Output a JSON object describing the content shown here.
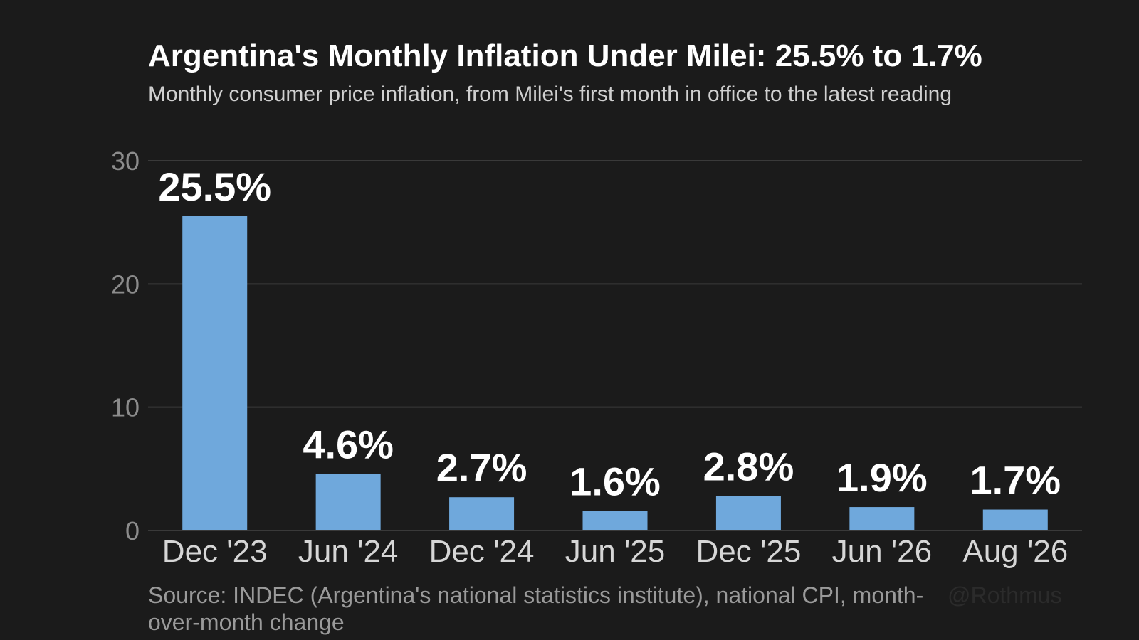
{
  "colors": {
    "background": "#1b1b1b",
    "bar": "#6fa8dc",
    "grid": "#3a3a3a",
    "text": "#ffffff",
    "axis_text": "#8c8c8c",
    "category_text": "#d6d6d6"
  },
  "chart_data": {
    "type": "bar",
    "title": "Argentina's Monthly Inflation Under Milei: 25.5% to 1.7%",
    "subtitle": "Monthly consumer price inflation, from Milei's first month in office to the latest reading",
    "categories": [
      "Dec '23",
      "Jun '24",
      "Dec '24",
      "Jun '25",
      "Dec '25",
      "Jun '26",
      "Aug '26"
    ],
    "values": [
      25.5,
      4.6,
      2.7,
      1.6,
      2.8,
      1.9,
      1.7
    ],
    "data_labels": [
      "25.5%",
      "4.6%",
      "2.7%",
      "1.6%",
      "2.8%",
      "1.9%",
      "1.7%"
    ],
    "yticks": [
      0,
      10,
      20,
      30
    ],
    "ytick_labels": [
      "0",
      "10",
      "20",
      "30"
    ],
    "ylim": [
      0,
      30
    ],
    "grid": true,
    "xlabel": "",
    "ylabel": ""
  },
  "footer": {
    "source": "Source: INDEC (Argentina's national statistics institute), national CPI, month-over-month change",
    "credit": "@Rothmus"
  }
}
